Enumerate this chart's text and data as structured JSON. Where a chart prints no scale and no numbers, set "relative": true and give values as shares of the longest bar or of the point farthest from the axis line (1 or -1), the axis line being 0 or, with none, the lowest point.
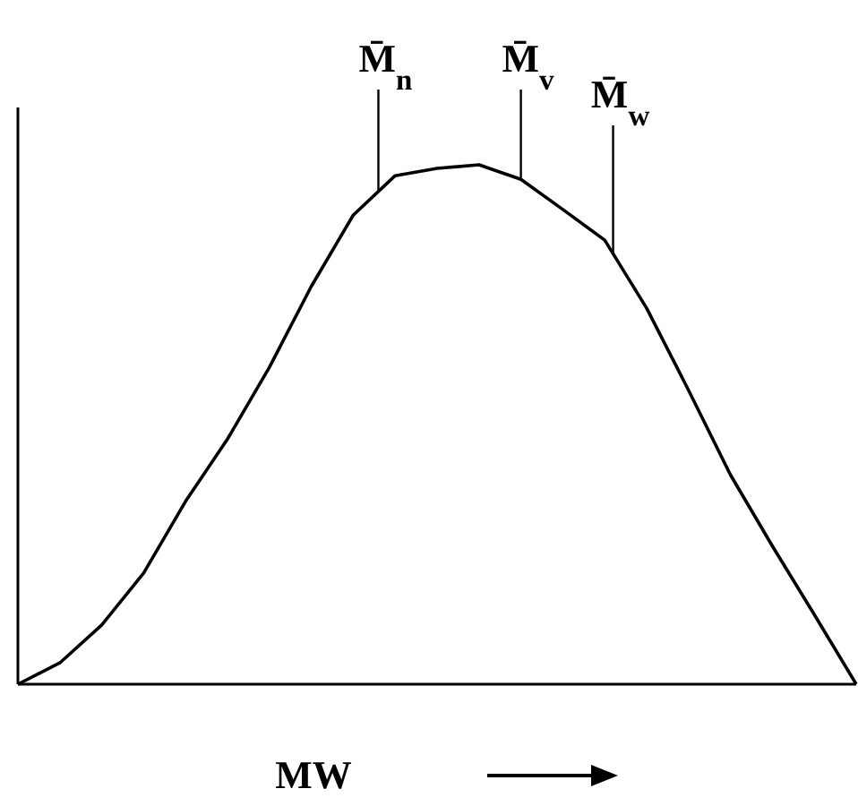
{
  "chart_data": {
    "type": "line",
    "relative": true,
    "xlabel": "MW",
    "color": "#000000",
    "categories": [
      null,
      null,
      null,
      null,
      null,
      null,
      null,
      null,
      null,
      null,
      null,
      null,
      null,
      null,
      null,
      null,
      null,
      null,
      null,
      null,
      null
    ],
    "values": [
      0,
      0.041,
      0.114,
      0.214,
      0.352,
      0.472,
      0.61,
      0.766,
      0.903,
      0.979,
      0.993,
      1,
      0.972,
      0.914,
      0.855,
      0.724,
      0.566,
      0.403,
      0.266,
      0.134,
      0
    ],
    "annotations": [
      "M̄$_{n}$",
      "M̄$_{v}$",
      "M̄$_{w}$"
    ],
    "marker": "none",
    "line_style": "solid"
  }
}
